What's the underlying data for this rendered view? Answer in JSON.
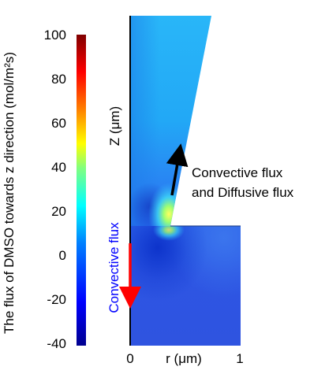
{
  "colorbar": {
    "label": "The flux of DMSO towards z direction (mol/m²s)",
    "ticks": [
      "100",
      "80",
      "60",
      "40",
      "20",
      "0",
      "-20",
      "-40"
    ],
    "range": [
      -40,
      100
    ],
    "colormap": [
      "#00008f",
      "#0000ff",
      "#0080ff",
      "#00ffff",
      "#80ff80",
      "#ffff00",
      "#ff8000",
      "#ff0000",
      "#800000"
    ]
  },
  "axes": {
    "z_label": "Z (μm)",
    "r_label": "r (μm)",
    "r_ticks": [
      "0",
      "1"
    ]
  },
  "annotations": {
    "upper_arrow_label_line1": "Convective flux",
    "upper_arrow_label_line2": "and Diffusive flux",
    "lower_arrow_label": "Convective flux"
  },
  "colors": {
    "upper_arrow": "#000000",
    "lower_arrow": "#ff0000",
    "lower_label": "#0000ff",
    "field_background": "#2a6cf0",
    "field_mid": "#1a9cf6",
    "field_light": "#35c6fb",
    "hotspot": "#ffff40"
  }
}
